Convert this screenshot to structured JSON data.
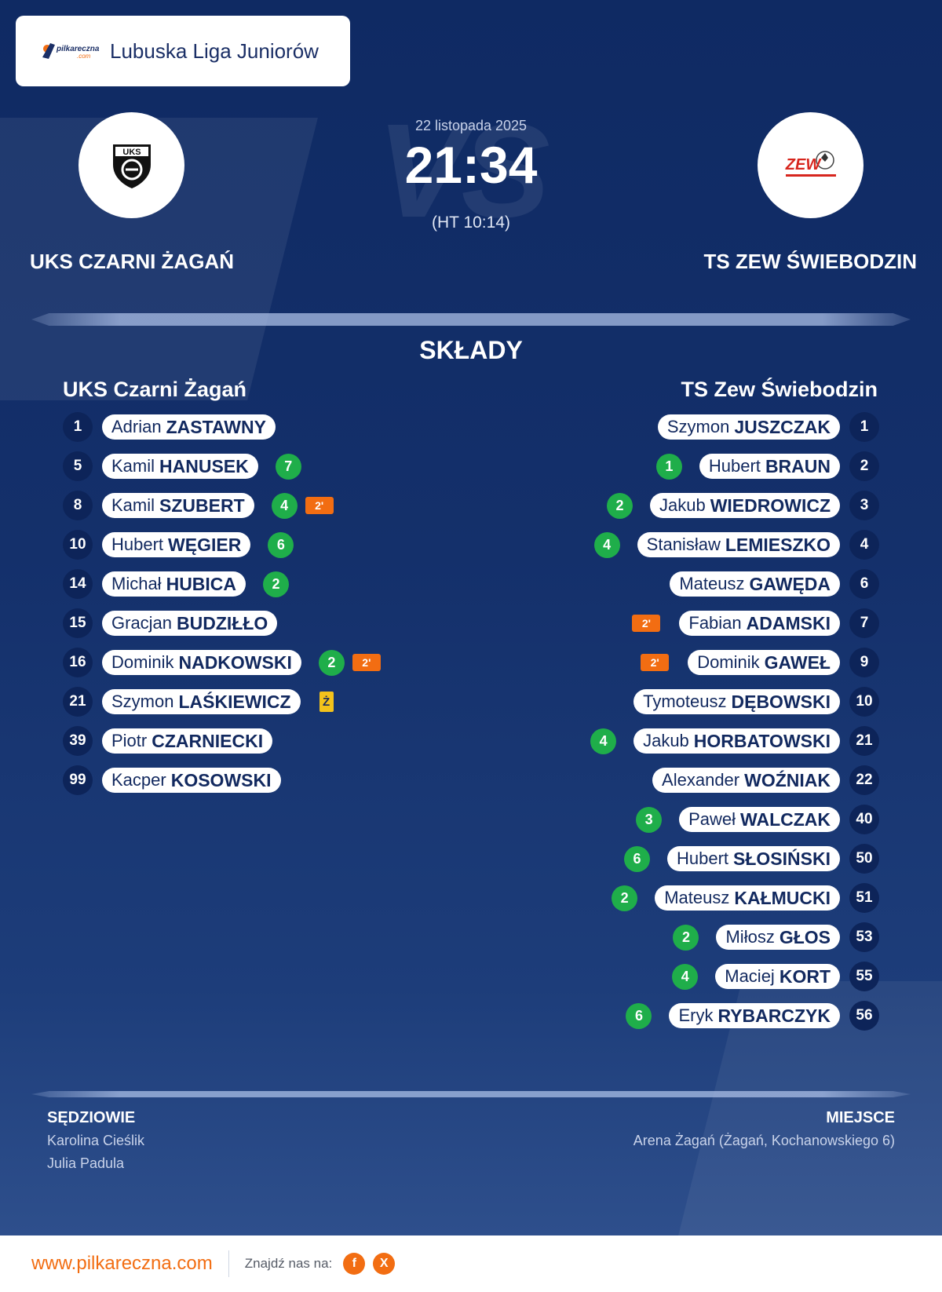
{
  "league": {
    "name": "Lubuska Liga Juniorów",
    "brand_logo": "pilkareczna.com"
  },
  "match": {
    "date": "22 listopada 2025",
    "score": "21:34",
    "halftime": "(HT 10:14)",
    "vs_watermark": "VS"
  },
  "home": {
    "name": "UKS CZARNI ŻAGAŃ",
    "lineup_title": "UKS Czarni Żagań",
    "crest_text": "UKS",
    "players": [
      {
        "num": "1",
        "first": "Adrian",
        "last": "ZASTAWNY",
        "goals": "",
        "pen": "",
        "card": ""
      },
      {
        "num": "5",
        "first": "Kamil",
        "last": "HANUSEK",
        "goals": "7",
        "pen": "",
        "card": ""
      },
      {
        "num": "8",
        "first": "Kamil",
        "last": "SZUBERT",
        "goals": "4",
        "pen": "2'",
        "card": ""
      },
      {
        "num": "10",
        "first": "Hubert",
        "last": "WĘGIER",
        "goals": "6",
        "pen": "",
        "card": ""
      },
      {
        "num": "14",
        "first": "Michał",
        "last": "HUBICA",
        "goals": "2",
        "pen": "",
        "card": ""
      },
      {
        "num": "15",
        "first": "Gracjan",
        "last": "BUDZIŁŁO",
        "goals": "",
        "pen": "",
        "card": ""
      },
      {
        "num": "16",
        "first": "Dominik",
        "last": "NADKOWSKI",
        "goals": "2",
        "pen": "2'",
        "card": ""
      },
      {
        "num": "21",
        "first": "Szymon",
        "last": "LAŚKIEWICZ",
        "goals": "",
        "pen": "",
        "card": "Ż"
      },
      {
        "num": "39",
        "first": "Piotr",
        "last": "CZARNIECKI",
        "goals": "",
        "pen": "",
        "card": ""
      },
      {
        "num": "99",
        "first": "Kacper",
        "last": "KOSOWSKI",
        "goals": "",
        "pen": "",
        "card": ""
      }
    ]
  },
  "away": {
    "name": "TS ZEW ŚWIEBODZIN",
    "lineup_title": "TS Zew Świebodzin",
    "crest_text": "ZEW",
    "players": [
      {
        "num": "1",
        "first": "Szymon",
        "last": "JUSZCZAK",
        "goals": "",
        "pen": ""
      },
      {
        "num": "2",
        "first": "Hubert",
        "last": "BRAUN",
        "goals": "1",
        "pen": ""
      },
      {
        "num": "3",
        "first": "Jakub",
        "last": "WIEDROWICZ",
        "goals": "2",
        "pen": ""
      },
      {
        "num": "4",
        "first": "Stanisław",
        "last": "LEMIESZKO",
        "goals": "4",
        "pen": ""
      },
      {
        "num": "6",
        "first": "Mateusz",
        "last": "GAWĘDA",
        "goals": "",
        "pen": ""
      },
      {
        "num": "7",
        "first": "Fabian",
        "last": "ADAMSKI",
        "goals": "",
        "pen": "2'"
      },
      {
        "num": "9",
        "first": "Dominik",
        "last": "GAWEŁ",
        "goals": "",
        "pen": "2'"
      },
      {
        "num": "10",
        "first": "Tymoteusz",
        "last": "DĘBOWSKI",
        "goals": "",
        "pen": ""
      },
      {
        "num": "21",
        "first": "Jakub",
        "last": "HORBATOWSKI",
        "goals": "4",
        "pen": ""
      },
      {
        "num": "22",
        "first": "Alexander",
        "last": "WOŹNIAK",
        "goals": "",
        "pen": ""
      },
      {
        "num": "40",
        "first": "Paweł",
        "last": "WALCZAK",
        "goals": "3",
        "pen": ""
      },
      {
        "num": "50",
        "first": "Hubert",
        "last": "SŁOSIŃSKI",
        "goals": "6",
        "pen": ""
      },
      {
        "num": "51",
        "first": "Mateusz",
        "last": "KAŁMUCKI",
        "goals": "2",
        "pen": ""
      },
      {
        "num": "53",
        "first": "Miłosz",
        "last": "GŁOS",
        "goals": "2",
        "pen": ""
      },
      {
        "num": "55",
        "first": "Maciej",
        "last": "KORT",
        "goals": "4",
        "pen": ""
      },
      {
        "num": "56",
        "first": "Eryk",
        "last": "RYBARCZYK",
        "goals": "6",
        "pen": ""
      }
    ]
  },
  "section_title": "SKŁADY",
  "referees": {
    "heading": "SĘDZIOWIE",
    "names": [
      "Karolina Cieślik",
      "Julia Padula"
    ]
  },
  "venue": {
    "heading": "MIEJSCE",
    "text": "Arena Żagań (Żagań, Kochanowskiego 6)"
  },
  "footer": {
    "site": "www.pilkareczna.com",
    "find_us": "Znajdź nas na:",
    "social": [
      {
        "icon": "facebook-icon",
        "glyph": "f"
      },
      {
        "icon": "x-icon",
        "glyph": "X"
      }
    ]
  },
  "colors": {
    "bg": "#0f2a63",
    "accent": "#f26d12",
    "goal": "#1fae4a",
    "yellow": "#f3c21b"
  }
}
